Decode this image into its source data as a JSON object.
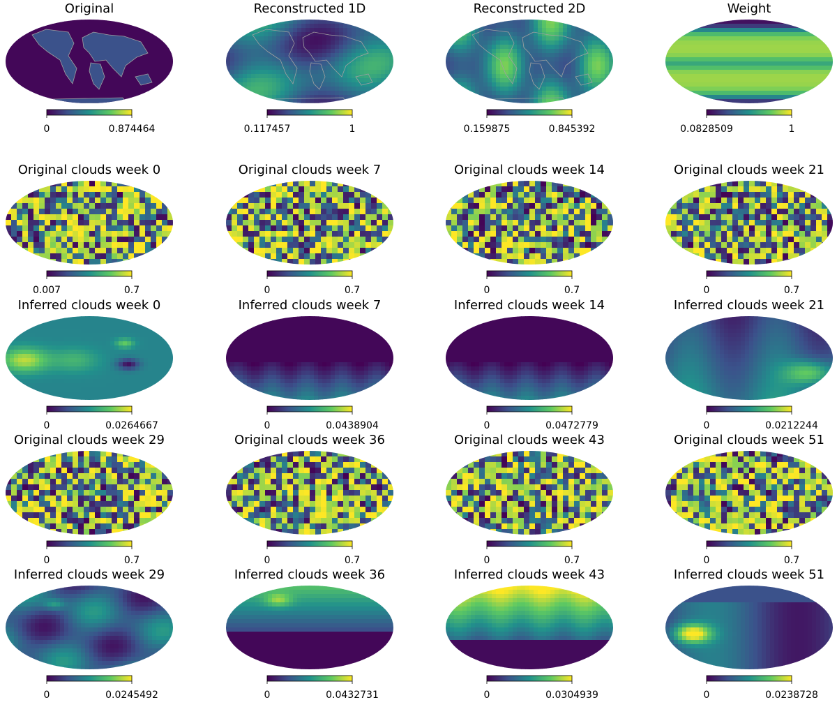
{
  "figure": {
    "panels": [
      {
        "title": "Original",
        "map_kind": "earth_topography",
        "colorbar": {
          "min": "0",
          "max": "0.874464"
        }
      },
      {
        "title": "Reconstructed 1D",
        "map_kind": "reconstruction_smooth_with_coastlines",
        "colorbar": {
          "min": "0.117457",
          "max": "1"
        }
      },
      {
        "title": "Reconstructed 2D",
        "map_kind": "reconstruction_detailed_with_coastlines",
        "colorbar": {
          "min": "0.159875",
          "max": "0.845392"
        }
      },
      {
        "title": "Weight",
        "map_kind": "latitude_bands",
        "colorbar": {
          "min": "0.0828509",
          "max": "1"
        }
      },
      {
        "title": "Original clouds week 0",
        "map_kind": "cloud_noise",
        "colorbar": {
          "min": "0.007",
          "max": "0.7"
        }
      },
      {
        "title": "Original clouds week 7",
        "map_kind": "cloud_noise",
        "colorbar": {
          "min": "0",
          "max": "0.7"
        }
      },
      {
        "title": "Original clouds week 14",
        "map_kind": "cloud_noise",
        "colorbar": {
          "min": "0",
          "max": "0.7"
        }
      },
      {
        "title": "Original clouds week 21",
        "map_kind": "cloud_noise",
        "colorbar": {
          "min": "0",
          "max": "0.7"
        }
      },
      {
        "title": "Inferred clouds week 0",
        "map_kind": "inferred_blobs_bright_left",
        "colorbar": {
          "min": "0",
          "max": "0.0264667"
        }
      },
      {
        "title": "Inferred clouds week 7",
        "map_kind": "inferred_dark_top",
        "colorbar": {
          "min": "0",
          "max": "0.0438904"
        }
      },
      {
        "title": "Inferred clouds week 14",
        "map_kind": "inferred_dark_top",
        "colorbar": {
          "min": "0",
          "max": "0.0472779"
        }
      },
      {
        "title": "Inferred clouds week 21",
        "map_kind": "inferred_bright_right",
        "colorbar": {
          "min": "0",
          "max": "0.0212244"
        }
      },
      {
        "title": "Original clouds week 29",
        "map_kind": "cloud_noise",
        "colorbar": {
          "min": "0",
          "max": "0.7"
        }
      },
      {
        "title": "Original clouds week 36",
        "map_kind": "cloud_noise",
        "colorbar": {
          "min": "0",
          "max": "0.7"
        }
      },
      {
        "title": "Original clouds week 43",
        "map_kind": "cloud_noise",
        "colorbar": {
          "min": "0",
          "max": "0.7"
        }
      },
      {
        "title": "Original clouds week 51",
        "map_kind": "cloud_noise",
        "colorbar": {
          "min": "0",
          "max": "0.7"
        }
      },
      {
        "title": "Inferred clouds week 29",
        "map_kind": "inferred_mottled",
        "colorbar": {
          "min": "0",
          "max": "0.0245492"
        }
      },
      {
        "title": "Inferred clouds week 36",
        "map_kind": "inferred_dark_bottom",
        "colorbar": {
          "min": "0",
          "max": "0.0432731"
        }
      },
      {
        "title": "Inferred clouds week 43",
        "map_kind": "inferred_dark_bottom_bright_top",
        "colorbar": {
          "min": "0",
          "max": "0.0304939"
        }
      },
      {
        "title": "Inferred clouds week 51",
        "map_kind": "inferred_bright_left_blob",
        "colorbar": {
          "min": "0",
          "max": "0.0238728"
        }
      }
    ],
    "colormap": [
      "#440154",
      "#3b528b",
      "#21918c",
      "#5ec962",
      "#fde725"
    ],
    "coastline_color": "#a0a0a0"
  }
}
